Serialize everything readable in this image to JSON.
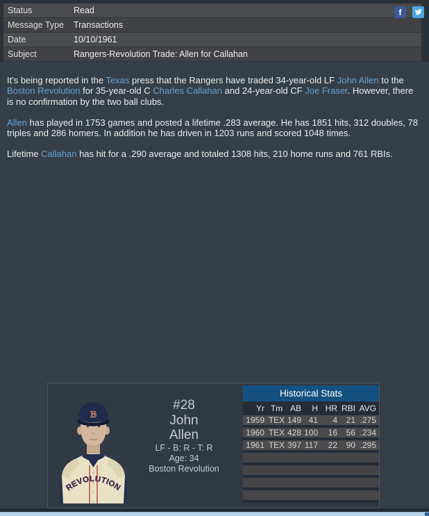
{
  "header": {
    "rows": [
      {
        "label": "Status",
        "value": "Read"
      },
      {
        "label": "Message Type",
        "value": "Transactions"
      },
      {
        "label": "Date",
        "value": "10/10/1961"
      },
      {
        "label": "Subject",
        "value": "Rangers-Revolution Trade: Allen for Callahan"
      }
    ],
    "social": {
      "facebook_glyph": "f",
      "twitter_icon": "twitter-bird"
    }
  },
  "message": {
    "paragraphs": [
      {
        "segments": [
          {
            "t": "It's being reported in the "
          },
          {
            "t": "Texas",
            "link": true
          },
          {
            "t": " press that the Rangers have traded 34-year-old LF "
          },
          {
            "t": "John Allen",
            "link": true
          },
          {
            "t": " to the "
          },
          {
            "t": "Boston Revolution",
            "link": true
          },
          {
            "t": " for 35-year-old C "
          },
          {
            "t": "Charles Callahan",
            "link": true
          },
          {
            "t": " and 24-year-old CF "
          },
          {
            "t": "Joe Fraser",
            "link": true
          },
          {
            "t": ". However, there is no confirmation by the two ball clubs."
          }
        ]
      },
      {
        "segments": [
          {
            "t": "Allen",
            "link": true
          },
          {
            "t": " has played in 1753 games and posted a lifetime .283 average. He has 1851 hits, 312 doubles, 78 triples and 286 homers. In addition he has driven in 1203 runs and scored 1048 times."
          }
        ]
      },
      {
        "segments": [
          {
            "t": "Lifetime "
          },
          {
            "t": "Callahan",
            "link": true
          },
          {
            "t": " has hit for a .290 average and totaled 1308 hits, 210 home runs and 761 RBIs."
          }
        ]
      }
    ]
  },
  "player_card": {
    "number": "#28",
    "first_name": "John",
    "last_name": "Allen",
    "position_line": "LF - B: R - T: R",
    "age_line": "Age: 34",
    "team": "Boston Revolution",
    "jersey_text": "REVOLUTION",
    "cap_letter": "B"
  },
  "historical_stats": {
    "title": "Historical Stats",
    "columns": [
      "Yr",
      "Tm",
      "AB",
      "H",
      "HR",
      "RBI",
      "AVG"
    ],
    "rows": [
      [
        "1959",
        "TEX",
        "149",
        "41",
        "4",
        "21",
        ".275"
      ],
      [
        "1960",
        "TEX",
        "428",
        "100",
        "16",
        "56",
        ".234"
      ],
      [
        "1961",
        "TEX",
        "397",
        "117",
        "22",
        "90",
        ".295"
      ]
    ],
    "empty_row_count": 4
  },
  "colors": {
    "link": "#64a0d2",
    "facebook": "#3b5998",
    "twitter": "#4aa8e0",
    "stats_header": "#155180",
    "footer_bar": "#b9d3e9"
  }
}
